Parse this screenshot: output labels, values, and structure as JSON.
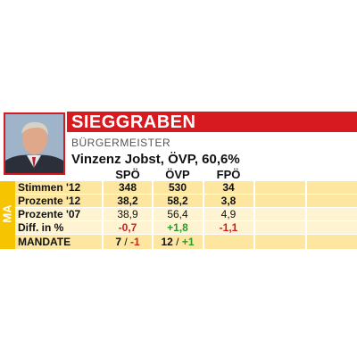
{
  "header": {
    "title": "SIEGGRABEN",
    "role": "BÜRGERMEISTER",
    "mayor": "Vinzenz Jobst, ÖVP, 60,6%",
    "side_label": "MA"
  },
  "table": {
    "columns": [
      "SPÖ",
      "ÖVP",
      "FPÖ"
    ],
    "rows": [
      {
        "label": "Stimmen '12",
        "cells": [
          "348",
          "530",
          "34"
        ]
      },
      {
        "label": "Prozente '12",
        "cells": [
          "38,2",
          "58,2",
          "3,8"
        ]
      },
      {
        "label": "Prozente '07",
        "cells": [
          "38,9",
          "56,4",
          "4,9"
        ]
      },
      {
        "label": "Diff. in %",
        "cells": [
          "-0,7",
          "+1,8",
          "-1,1"
        ]
      }
    ],
    "mandate": {
      "label": "MANDATE",
      "cells": [
        {
          "seats": "7",
          "change": "-1"
        },
        {
          "seats": "12",
          "change": "+1"
        }
      ]
    }
  }
}
